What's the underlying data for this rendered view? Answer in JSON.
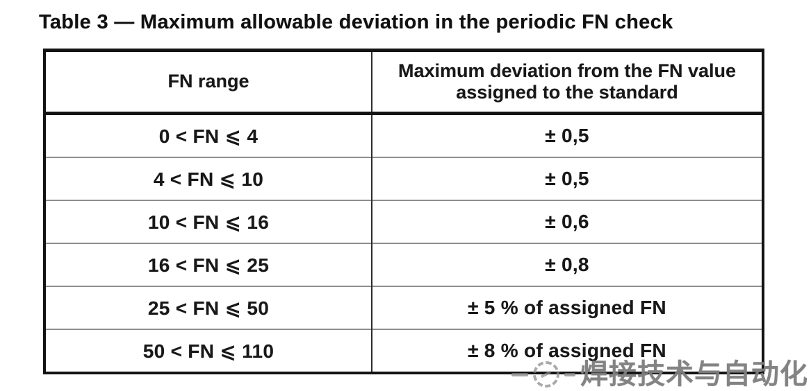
{
  "document": {
    "title": "Table 3 — Maximum allowable deviation in the periodic FN check"
  },
  "table": {
    "headers": [
      "FN range",
      "Maximum deviation from the FN value assigned to the standard"
    ],
    "rows": [
      {
        "range": "0 < FN ⩽ 4",
        "deviation": "± 0,5"
      },
      {
        "range": "4 < FN ⩽ 10",
        "deviation": "± 0,5"
      },
      {
        "range": "10 < FN ⩽ 16",
        "deviation": "± 0,6"
      },
      {
        "range": "16 < FN ⩽ 25",
        "deviation": "± 0,8"
      },
      {
        "range": "25 < FN ⩽ 50",
        "deviation": "± 5 % of assigned FN"
      },
      {
        "range": "50 < FN ⩽ 110",
        "deviation": "± 8 % of assigned FN"
      }
    ]
  },
  "watermark": {
    "text": "焊接技术与自动化"
  },
  "colors": {
    "ink": "#1a1a1a",
    "outer_border": "#161616",
    "row_divider": "#8e8e8e",
    "column_divider": "#2e2e2e",
    "watermark_gray": "#9a9a9a",
    "paper": "#fdfdfd"
  }
}
